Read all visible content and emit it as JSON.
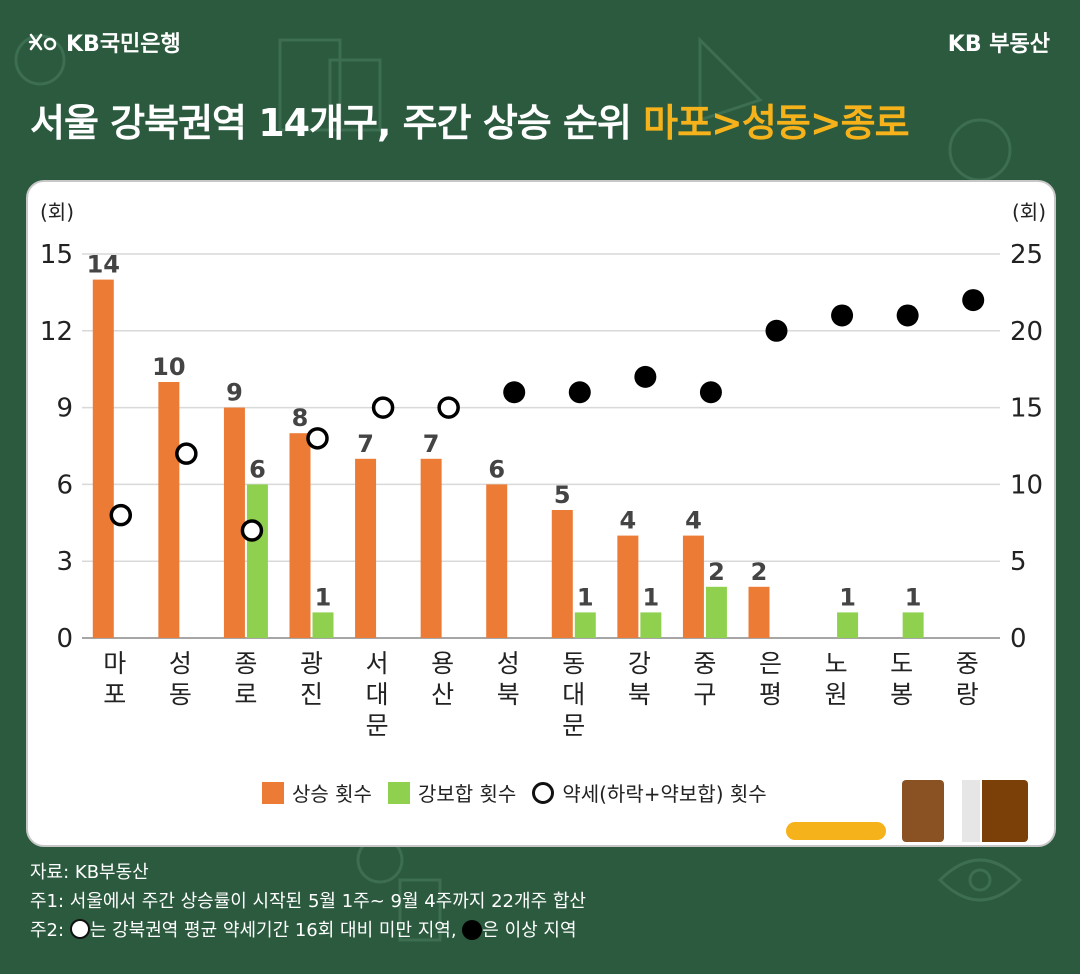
{
  "header": {
    "brand_left": "KB국민은행",
    "brand_right": "KB 부동산"
  },
  "title": {
    "main": "서울 강북권역 14개구, 주간 상승 순위 ",
    "highlight": "마포>성동>종로"
  },
  "colors": {
    "background": "#2b5a3f",
    "rise": "#ec7b35",
    "flat": "#8fd14f",
    "highlight": "#f6b21a"
  },
  "chart_data": {
    "type": "bar",
    "categories": [
      "마포",
      "성동",
      "종로",
      "광진",
      "서대문",
      "용산",
      "성북",
      "동대문",
      "강북",
      "중구",
      "은평",
      "노원",
      "도봉",
      "중랑"
    ],
    "series": [
      {
        "name": "상승 횟수",
        "axis": "left",
        "type": "bar",
        "color": "#ec7b35",
        "values": [
          14,
          10,
          9,
          8,
          7,
          7,
          6,
          5,
          4,
          4,
          2,
          0,
          0,
          0
        ],
        "labels": [
          "14",
          "10",
          "9",
          "8",
          "7",
          "7",
          "6",
          "5",
          "4",
          "4",
          "2",
          "",
          "",
          ""
        ]
      },
      {
        "name": "강보합 횟수",
        "axis": "left",
        "type": "bar",
        "color": "#8fd14f",
        "values": [
          0,
          0,
          6,
          1,
          0,
          0,
          0,
          1,
          1,
          2,
          0,
          1,
          1,
          0
        ],
        "labels": [
          "",
          "",
          "6",
          "1",
          "",
          "",
          "",
          "1",
          "1",
          "2",
          "",
          "1",
          "1",
          ""
        ]
      },
      {
        "name": "약세(하락+약보합) 횟수",
        "axis": "right",
        "type": "scatter",
        "values": [
          8,
          12,
          7,
          13,
          15,
          15,
          16,
          16,
          17,
          16,
          20,
          21,
          21,
          22
        ],
        "filled": [
          false,
          false,
          false,
          false,
          false,
          false,
          true,
          true,
          true,
          true,
          true,
          true,
          true,
          true
        ]
      }
    ],
    "left_axis": {
      "unit": "(회)",
      "ylim": [
        0,
        15
      ],
      "ticks": [
        "0",
        "3",
        "6",
        "9",
        "12",
        "15"
      ]
    },
    "right_axis": {
      "unit": "(회)",
      "ylim": [
        0,
        25
      ],
      "ticks": [
        "0",
        "5",
        "10",
        "15",
        "20",
        "25"
      ]
    },
    "grid": true,
    "legend_position": "bottom"
  },
  "footer": {
    "source": "자료: KB부동산",
    "note1": "주1: 서울에서 주간 상승률이 시작된 5월 1주~ 9월 4주까지 22개주 합산",
    "note2_prefix": "주2: ",
    "note2_mid": "는 강북권역 평균 약세기간 16회 대비 미만 지역, ",
    "note2_suffix": "은 이상 지역"
  }
}
